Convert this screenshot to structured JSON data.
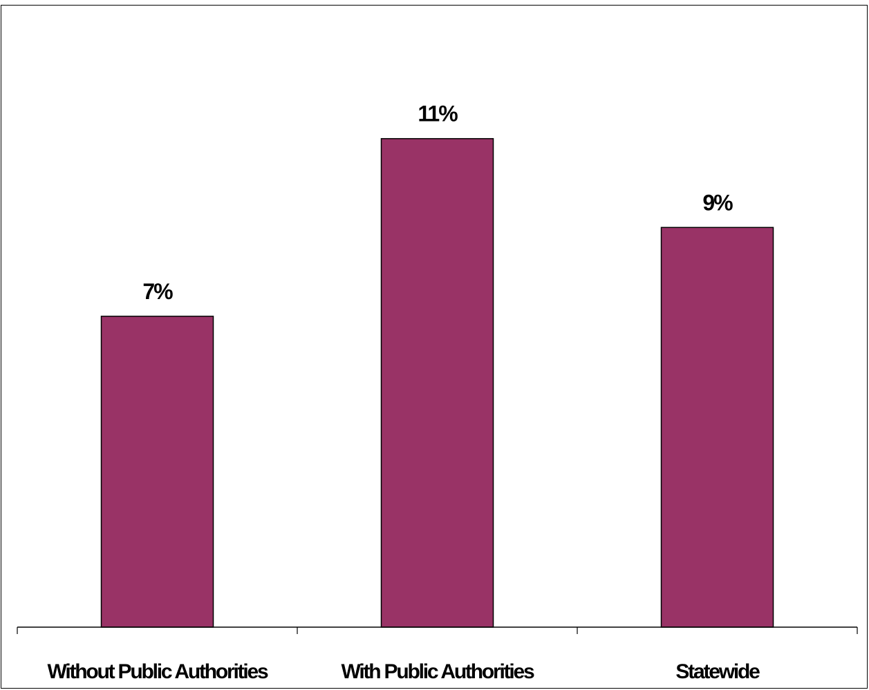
{
  "chart_data": {
    "type": "bar",
    "categories": [
      "Without Public Authorities",
      "With Public Authorities",
      "Statewide"
    ],
    "values": [
      7,
      11,
      9
    ],
    "data_labels": [
      "7%",
      "11%",
      "9%"
    ],
    "unit": "%",
    "title": "",
    "xlabel": "",
    "ylabel": "",
    "ylim": [
      0,
      12
    ],
    "grid": false,
    "legend": "none",
    "colors": {
      "bar_fill": "#993366",
      "bar_stroke": "#000000",
      "axis": "#000000"
    }
  }
}
